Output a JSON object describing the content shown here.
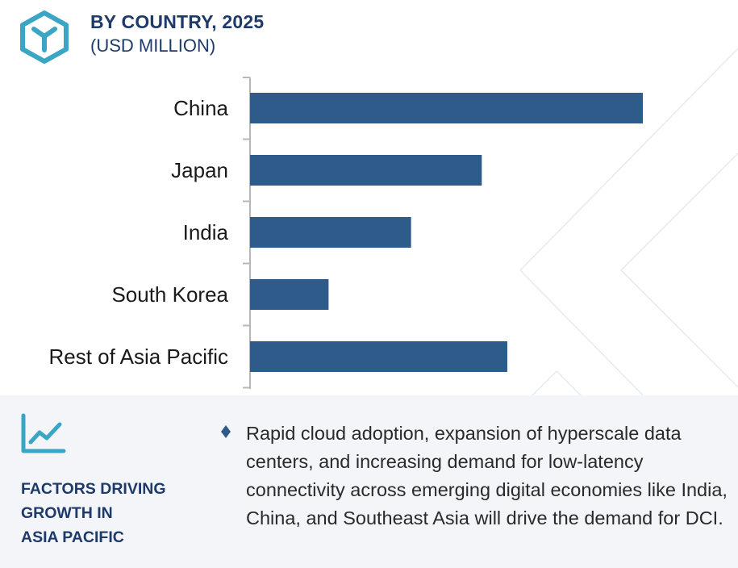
{
  "header": {
    "title": "BY COUNTRY, 2025",
    "subtitle": "(USD MILLION)",
    "logo_icon": "hexagon-y-logo-icon"
  },
  "colors": {
    "bar": "#2e5b8a",
    "title": "#1d3a6b",
    "accent": "#3aa6c4",
    "panel_bg": "#f3f5f9"
  },
  "chart_data": {
    "type": "bar",
    "orientation": "horizontal",
    "categories": [
      "China",
      "Japan",
      "India",
      "South Korea",
      "Rest of Asia Pacific"
    ],
    "values": [
      100,
      59,
      41,
      20,
      65.5
    ],
    "xlim": [
      0,
      100
    ],
    "grid": false,
    "legend": "none",
    "title": "BY COUNTRY, 2025",
    "subtitle": "(USD MILLION)"
  },
  "factors_panel": {
    "icon": "trend-line-chart-icon",
    "heading_lines": [
      "FACTORS DRIVING",
      "GROWTH IN",
      "ASIA PACIFIC"
    ],
    "bullet_icon": "diamond-bullet-icon",
    "text": "Rapid cloud adoption, expansion of hyperscale data centers, and increasing demand for low-latency connectivity across emerging digital economies like India, China, and Southeast Asia will drive the demand for DCI."
  }
}
